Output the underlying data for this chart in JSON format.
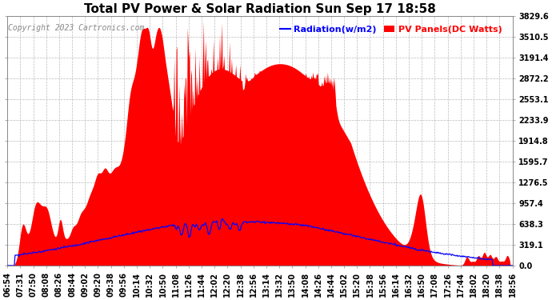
{
  "title": "Total PV Power & Solar Radiation Sun Sep 17 18:58",
  "copyright": "Copyright 2023 Cartronics.com",
  "legend_radiation": "Radiation(w/m2)",
  "legend_pv": "PV Panels(DC Watts)",
  "yticks": [
    0.0,
    319.1,
    638.3,
    957.4,
    1276.5,
    1595.7,
    1914.8,
    2233.9,
    2553.1,
    2872.2,
    3191.4,
    3510.5,
    3829.6
  ],
  "ymax": 3829.6,
  "ymin": 0.0,
  "bg_color": "#ffffff",
  "grid_color": "#bbbbbb",
  "pv_color": "#ff0000",
  "radiation_color": "#0000ff",
  "title_fontsize": 11,
  "tick_fontsize": 7,
  "copyright_fontsize": 7,
  "legend_fontsize": 8,
  "x_tick_labels": [
    "06:54",
    "07:31",
    "07:50",
    "08:08",
    "08:26",
    "08:44",
    "09:02",
    "09:20",
    "09:38",
    "09:56",
    "10:14",
    "10:32",
    "10:50",
    "11:08",
    "11:26",
    "11:44",
    "12:02",
    "12:20",
    "12:38",
    "12:56",
    "13:14",
    "13:32",
    "13:50",
    "14:08",
    "14:26",
    "14:44",
    "15:02",
    "15:20",
    "15:38",
    "15:56",
    "16:14",
    "16:32",
    "16:50",
    "17:08",
    "17:26",
    "17:44",
    "18:02",
    "18:20",
    "18:38",
    "18:56"
  ]
}
